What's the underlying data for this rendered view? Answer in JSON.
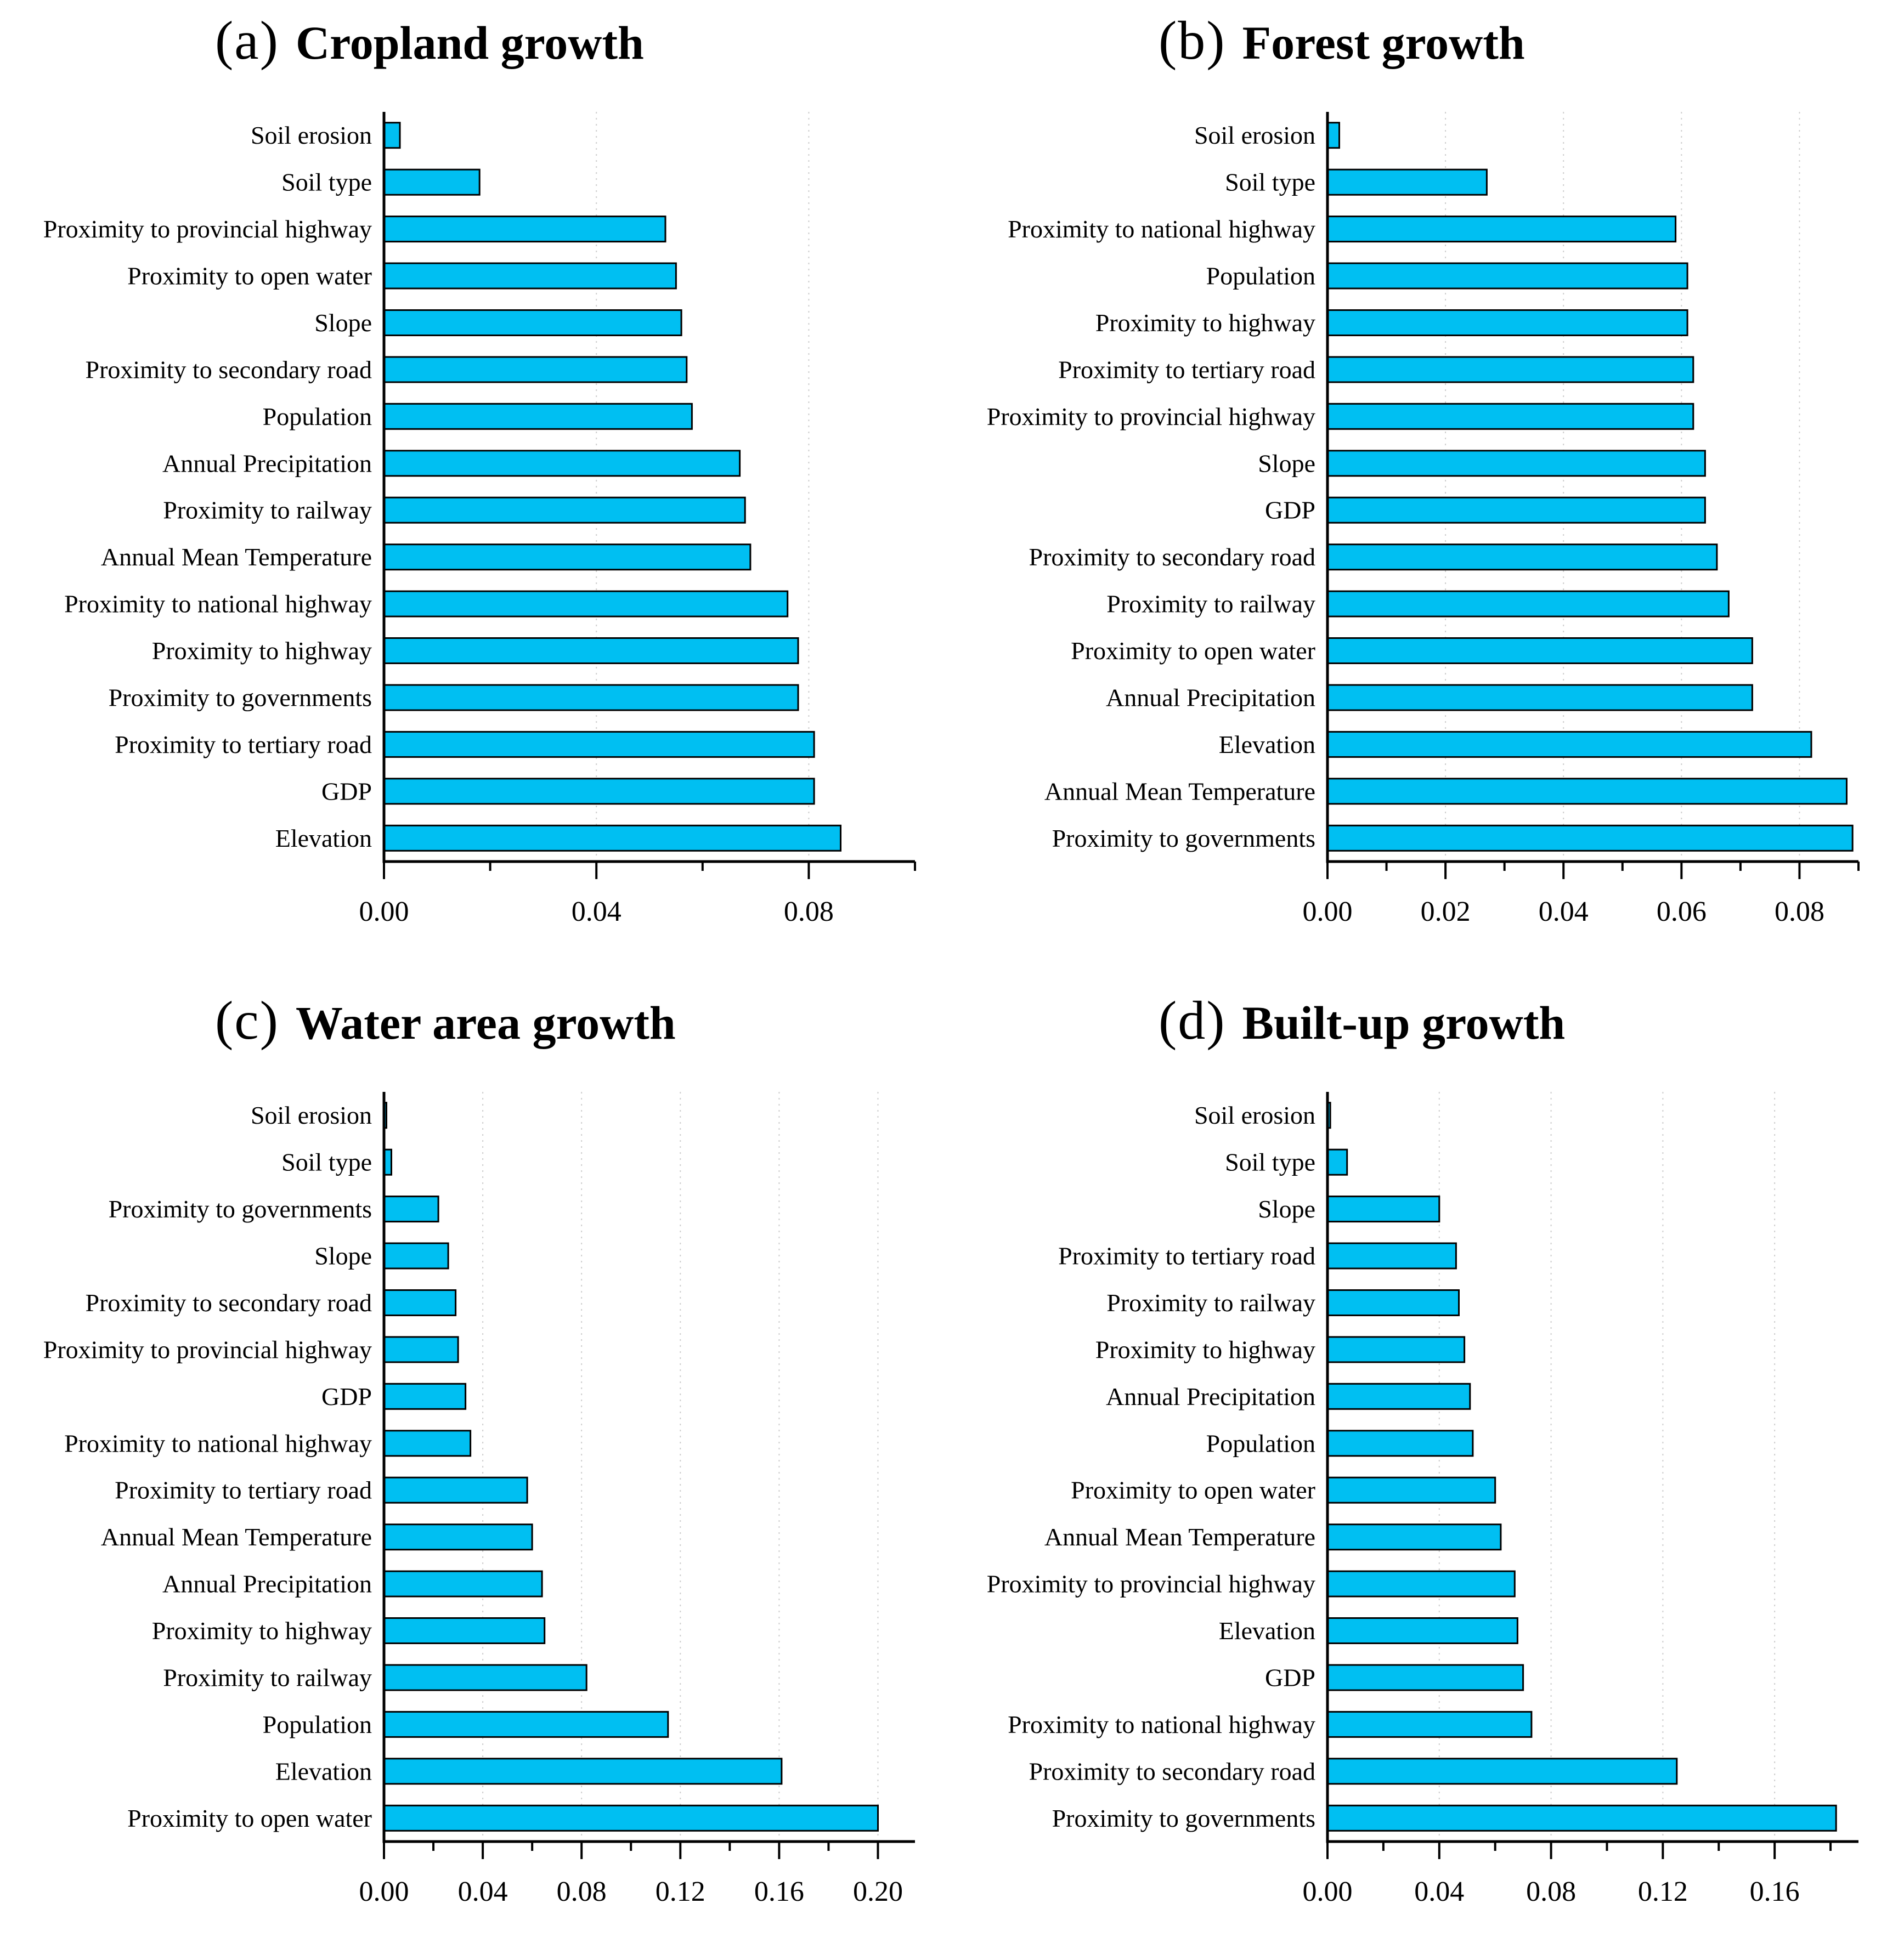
{
  "page": {
    "background": "#ffffff"
  },
  "styles": {
    "bar_fill": "#00bff2",
    "bar_stroke": "#000000",
    "axis_color": "#000000",
    "grid_color": "#cdcdcd",
    "text_color": "#000000"
  },
  "chart_data": [
    {
      "type": "bar",
      "orientation": "horizontal",
      "panel_label": "(a)",
      "title": "Cropland growth",
      "categories": [
        "Soil erosion",
        "Soil type",
        "Proximity to provincial highway",
        "Proximity to open water",
        "Slope",
        "Proximity to secondary road",
        "Population",
        "Annual Precipitation",
        "Proximity to railway",
        "Annual Mean Temperature",
        "Proximity to national highway",
        "Proximity to highway",
        "Proximity to governments",
        "Proximity to tertiary road",
        "GDP",
        "Elevation"
      ],
      "values": [
        0.003,
        0.018,
        0.053,
        0.055,
        0.056,
        0.057,
        0.058,
        0.067,
        0.068,
        0.069,
        0.076,
        0.078,
        0.078,
        0.081,
        0.081,
        0.086
      ],
      "xlabel": "",
      "ylabel": "",
      "xlim": [
        0,
        0.1
      ],
      "major_ticks": [
        0,
        0.04,
        0.08
      ],
      "minor_step": 0.02,
      "tick_decimals": 2,
      "grid": "dotted vertical lines at major ticks",
      "legend": null
    },
    {
      "type": "bar",
      "orientation": "horizontal",
      "panel_label": "(b)",
      "title": "Forest growth",
      "categories": [
        "Soil erosion",
        "Soil type",
        "Proximity to national highway",
        "Population",
        "Proximity to highway",
        "Proximity to tertiary road",
        "Proximity to provincial highway",
        "Slope",
        "GDP",
        "Proximity to secondary road",
        "Proximity to railway",
        "Proximity to open water",
        "Annual Precipitation",
        "Elevation",
        "Annual Mean Temperature",
        "Proximity to governments"
      ],
      "values": [
        0.002,
        0.027,
        0.059,
        0.061,
        0.061,
        0.062,
        0.062,
        0.064,
        0.064,
        0.066,
        0.068,
        0.072,
        0.072,
        0.082,
        0.088,
        0.089
      ],
      "xlabel": "",
      "ylabel": "",
      "xlim": [
        0,
        0.09
      ],
      "major_ticks": [
        0,
        0.02,
        0.04,
        0.06,
        0.08
      ],
      "minor_step": 0.01,
      "tick_decimals": 2,
      "grid": "dotted vertical lines at major ticks",
      "legend": null
    },
    {
      "type": "bar",
      "orientation": "horizontal",
      "panel_label": "(c)",
      "title": "Water area growth",
      "categories": [
        "Soil erosion",
        "Soil type",
        "Proximity to governments",
        "Slope",
        "Proximity to secondary road",
        "Proximity to provincial highway",
        "GDP",
        "Proximity to national highway",
        "Proximity to tertiary road",
        "Annual Mean Temperature",
        "Annual Precipitation",
        "Proximity to highway",
        "Proximity to railway",
        "Population",
        "Elevation",
        "Proximity to open water"
      ],
      "values": [
        0.001,
        0.003,
        0.022,
        0.026,
        0.029,
        0.03,
        0.033,
        0.035,
        0.058,
        0.06,
        0.064,
        0.065,
        0.082,
        0.115,
        0.161,
        0.2
      ],
      "xlabel": "",
      "ylabel": "",
      "xlim": [
        0,
        0.215
      ],
      "major_ticks": [
        0,
        0.04,
        0.08,
        0.12,
        0.16,
        0.2
      ],
      "minor_step": 0.02,
      "tick_decimals": 2,
      "grid": "dotted vertical lines at major ticks",
      "legend": null
    },
    {
      "type": "bar",
      "orientation": "horizontal",
      "panel_label": "(d)",
      "title": "Built-up growth",
      "categories": [
        "Soil erosion",
        "Soil type",
        "Slope",
        "Proximity to tertiary road",
        "Proximity to railway",
        "Proximity to highway",
        "Annual Precipitation",
        "Population",
        "Proximity to open water",
        "Annual Mean Temperature",
        "Proximity to provincial highway",
        "Elevation",
        "GDP",
        "Proximity to national highway",
        "Proximity to secondary road",
        "Proximity to governments"
      ],
      "values": [
        0.001,
        0.007,
        0.04,
        0.046,
        0.047,
        0.049,
        0.051,
        0.052,
        0.06,
        0.062,
        0.067,
        0.068,
        0.07,
        0.073,
        0.125,
        0.182
      ],
      "xlabel": "",
      "ylabel": "",
      "xlim": [
        0,
        0.19
      ],
      "major_ticks": [
        0,
        0.04,
        0.08,
        0.12,
        0.16
      ],
      "minor_step": 0.02,
      "tick_decimals": 2,
      "grid": "dotted vertical lines at major ticks",
      "legend": null
    }
  ]
}
